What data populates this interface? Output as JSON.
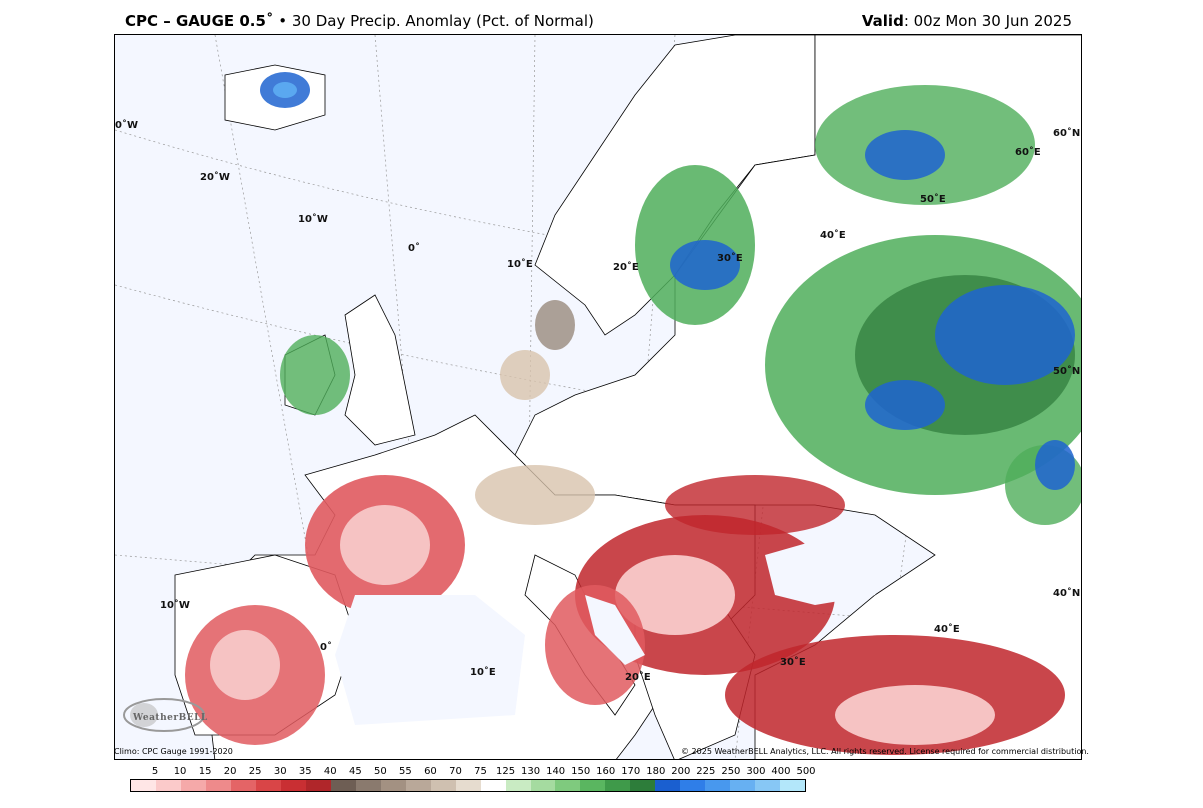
{
  "header": {
    "model": "CPC – GAUGE 0.5˚",
    "bullet": " • ",
    "product": "30 Day Precip. Anomlay (Pct. of Normal)",
    "valid_label": "Valid",
    "valid_time": ": 00z Mon 30 Jun 2025"
  },
  "footer": {
    "climo": "Climo: CPC Gauge 1991-2020",
    "copyright": "© 2025 WeatherBELL Analytics, LLC. All rights reserved. License required for commercial distribution."
  },
  "logo": {
    "text": "WeatherBELL"
  },
  "map": {
    "graticule_labels": {
      "lon_0": "0˚",
      "lon_10w_top": "10˚W",
      "lon_20w": "20˚W",
      "lon_0w": "0˚W",
      "lon_10e": "10˚E",
      "lon_20e": "20˚E",
      "lon_30e": "30˚E",
      "lon_40e": "40˚E",
      "lon_50e": "50˚E",
      "lon_60e": "60˚E",
      "lat_60n": "60˚N",
      "lat_50n": "50˚N",
      "lat_40n": "40˚N",
      "lon_10w_bottom": "10˚W",
      "lon_0_bottom": "0˚",
      "lon_10e_bottom": "10˚E",
      "lon_20e_bottom": "20˚E",
      "lon_30e_bottom": "30˚E",
      "lon_40e_bottom": "40˚E"
    },
    "colors": {
      "ocean": "#f4f7ff",
      "land": "#ffffff",
      "dry_strong": "#c0262c",
      "dry_mid": "#e05a5f",
      "dry_light": "#f6c3c3",
      "brown": "#8c7a6b",
      "tan": "#d8c3ad",
      "wet_light": "#a8d8a0",
      "wet_mid": "#4fae5a",
      "wet_dark": "#2e7a3a",
      "blue": "#1e64d0",
      "blue_light": "#5aa8f0"
    }
  },
  "legend": {
    "labels": [
      "5",
      "10",
      "15",
      "20",
      "25",
      "30",
      "35",
      "40",
      "45",
      "50",
      "55",
      "60",
      "70",
      "75",
      "125",
      "130",
      "140",
      "150",
      "160",
      "170",
      "180",
      "200",
      "225",
      "250",
      "300",
      "400",
      "500"
    ],
    "colors": [
      "#ffe6e6",
      "#fbcaca",
      "#f5a9a9",
      "#ee8a8b",
      "#e46466",
      "#d94547",
      "#c92f33",
      "#b0262a",
      "#6e5e54",
      "#8a7a6e",
      "#a39182",
      "#b9a899",
      "#cfc0b0",
      "#e6dccf",
      "#ffffff",
      "#c9ebc3",
      "#a5dba0",
      "#7fca7e",
      "#5ab660",
      "#3f9a4a",
      "#2d7d3a",
      "#1a5fd0",
      "#2f7ee8",
      "#4898ee",
      "#67b0f2",
      "#87c7f5",
      "#b3e7fa"
    ]
  }
}
